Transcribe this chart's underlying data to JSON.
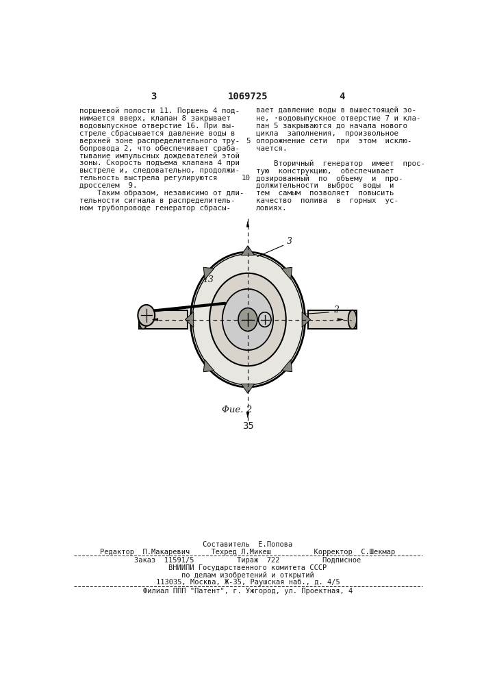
{
  "bg_color": "#ffffff",
  "text_color": "#1a1a1a",
  "page_number_left": "3",
  "page_number_center": "1069725",
  "page_number_right": "4",
  "col_left_lines": [
    "поршневой полости 11. Поршень 4 под-",
    "нимается вверх, клапан 8 закрывает",
    "водовыпускное отверстие 16. При вы-",
    "стреле сбрасывается давление воды в",
    "верхней зоне распределительного тру-",
    "бопровода 2, что обеспечивает сраба-",
    "тывание импульсных дождевателей этой",
    "зоны. Скорость подъема клапана 4 при",
    "выстреле и, следовательно, продолжи-",
    "тельность выстрела регулируются",
    "дросселем  9.",
    "    Таким образом, независимо от дли-",
    "тельности сигнала в распределитель-",
    "ном трубопроводе генератор сбрасы-"
  ],
  "col_right_lines": [
    "вает давление воды в вышестоящей зо-",
    "не, ·водовыпускное отверстие 7 и кла-",
    "пан 5 закрываются до начала нового",
    "цикла  заполнения,  произвольное",
    "опорожнение сети  при  этом  исклю-",
    "чается.",
    "",
    "    Вторичный  генератор  имеет  прос-",
    "тую  конструкцию,  обеспечивает",
    "дозированный  по  объему  и  про-",
    "должительности  выброс  воды  и",
    "тем  самым  позволяет  повысить",
    "качество  полива  в  горных  ус-",
    "ловиях."
  ],
  "line_5_row": 4,
  "line_10_row": 9,
  "fig_label": "Φue. 2",
  "page_bottom_number": "35",
  "footer_composer": "Составитель  Е.Попова",
  "footer_editors": "Редактор  П.Макаревич     Техред Л.Микеш          Корректор  С.Шекмар",
  "footer_order": "Заказ  11591/5          Тираж  722          Подписное",
  "footer_vniipи": "ВНИИПИ Государственного комитета СССР",
  "footer_affairs": "по делам изобретений и открытий",
  "footer_address": "113035, Москва, Ж-35, Раушская наб., д. 4/5",
  "footer_branch": "Филиал ППП \"Патент\", г. Ужгород, ул. Проектная, 4"
}
